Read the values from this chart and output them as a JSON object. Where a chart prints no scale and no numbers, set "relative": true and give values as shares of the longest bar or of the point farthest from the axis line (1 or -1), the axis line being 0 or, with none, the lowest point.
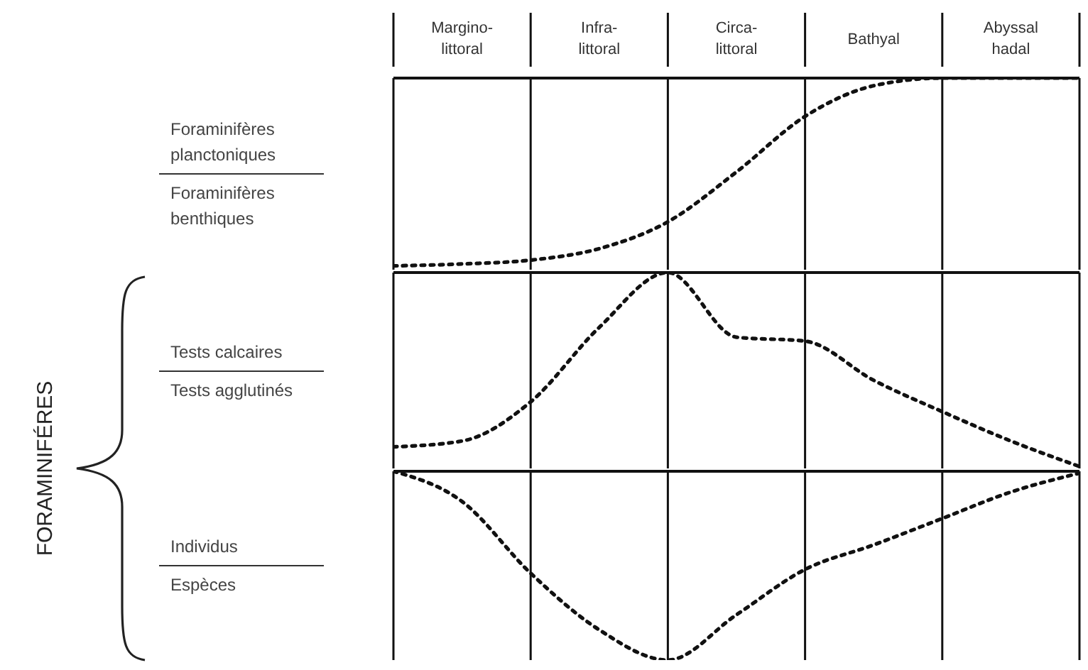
{
  "chart_data": [
    {
      "type": "line",
      "relative": true,
      "categories": [
        null,
        "Margino-littoral",
        null,
        "Infra-littoral",
        null,
        "Circa-littoral",
        null,
        "Bathyal",
        null,
        "Abyssal hadal",
        null
      ],
      "ylabel": "Foraminifères planctoniques\nForaminifères benthiques",
      "grid": "x",
      "tick_labels": "x",
      "marker": "none",
      "line_style": "dotted",
      "series": [
        {
          "color": "#111111",
          "values": [
            0.02,
            0.03,
            0.05,
            0.11,
            0.25,
            0.51,
            0.8,
            0.96,
            1,
            1,
            1
          ]
        }
      ]
    },
    {
      "type": "line",
      "relative": true,
      "categories": [
        null,
        null,
        null,
        null,
        null,
        null,
        null,
        null,
        null,
        null,
        null
      ],
      "ylabel": "Tests calcaires\nTests agglutinés",
      "grid": "x",
      "tick_labels": false,
      "marker": "none",
      "line_style": "dotted",
      "annotations": [
        "FORAMINIFÉRES"
      ],
      "series": [
        {
          "color": "#111111",
          "values": [
            0.11,
            0.14,
            0.34,
            0.72,
            1,
            0.67,
            0.65,
            0.45,
            0.29,
            0.14,
            0.01
          ]
        }
      ]
    },
    {
      "type": "line",
      "relative": true,
      "categories": [
        null,
        null,
        null,
        null,
        null,
        null,
        null,
        null,
        null,
        null,
        null
      ],
      "ylabel": "Individus\nEspèces",
      "grid": "x",
      "tick_labels": false,
      "marker": "none",
      "line_style": "dotted",
      "series": [
        {
          "color": "#111111",
          "values": [
            1,
            0.84,
            0.46,
            0.16,
            0,
            0.24,
            0.48,
            0.61,
            0.75,
            0.89,
            0.99
          ]
        }
      ]
    }
  ]
}
